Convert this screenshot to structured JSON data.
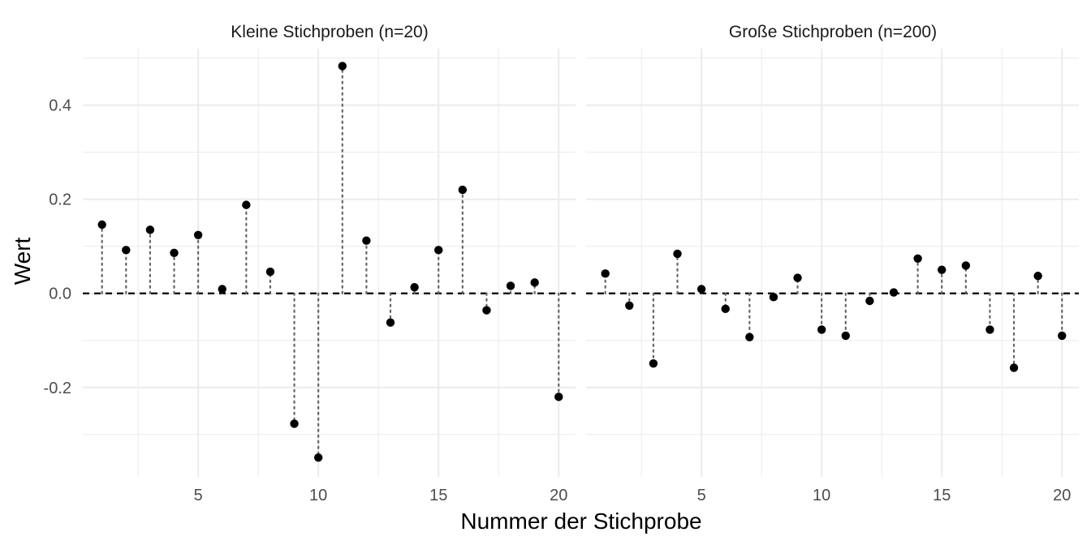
{
  "chart_data": {
    "type": "scatter",
    "xlabel": "Nummer der Stichprobe",
    "ylabel": "Wert",
    "x_range": [
      0.2,
      20.7
    ],
    "y_range": [
      -0.39,
      0.52
    ],
    "x_ticks": [
      5,
      10,
      15,
      20
    ],
    "y_ticks": [
      -0.2,
      0.0,
      0.2,
      0.4
    ],
    "y_tick_labels": [
      "-0.2",
      "0.0",
      "0.2",
      "0.4"
    ],
    "reference_line": 0,
    "grid": true,
    "colors": {
      "point": "#000000",
      "segment": "#666666",
      "grid": "#ebebeb",
      "reference": "#000000"
    },
    "panels": [
      {
        "title": "Kleine Stichproben (n=20)",
        "x": [
          1,
          2,
          3,
          4,
          5,
          6,
          7,
          8,
          9,
          10,
          11,
          12,
          13,
          14,
          15,
          16,
          17,
          18,
          19,
          20
        ],
        "values": [
          0.146,
          0.092,
          0.135,
          0.086,
          0.124,
          0.009,
          0.188,
          0.046,
          -0.277,
          -0.349,
          0.483,
          0.112,
          -0.062,
          0.013,
          0.092,
          0.22,
          -0.036,
          0.016,
          0.023,
          -0.22
        ]
      },
      {
        "title": "Große Stichproben (n=200)",
        "x": [
          1,
          2,
          3,
          4,
          5,
          6,
          7,
          8,
          9,
          10,
          11,
          12,
          13,
          14,
          15,
          16,
          17,
          18,
          19,
          20
        ],
        "values": [
          0.042,
          -0.026,
          -0.149,
          0.084,
          0.009,
          -0.033,
          -0.093,
          -0.008,
          0.033,
          -0.077,
          -0.09,
          -0.016,
          0.002,
          0.074,
          0.05,
          0.059,
          -0.077,
          -0.158,
          0.037,
          -0.09
        ]
      }
    ]
  }
}
